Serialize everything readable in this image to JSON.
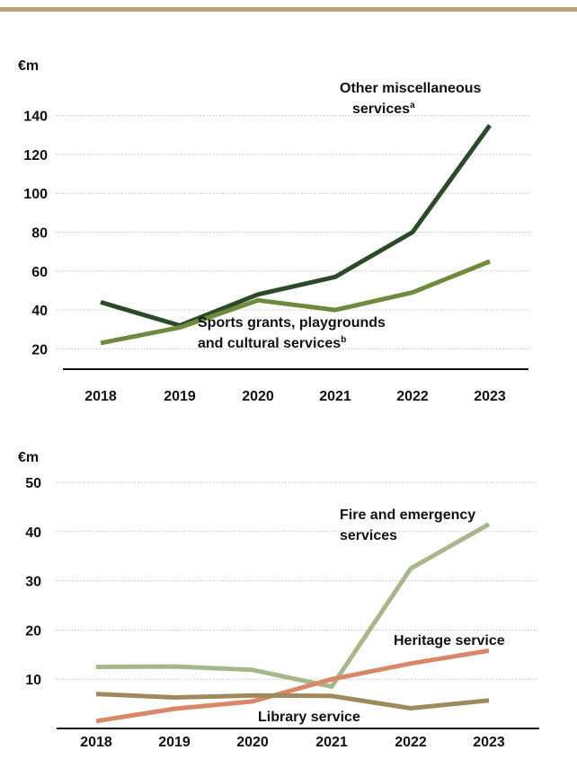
{
  "colors": {
    "rule": "#b9a27a",
    "grid": "#bdbdbd",
    "axis": "#111111"
  },
  "chart_data": [
    {
      "type": "line",
      "ylabel": "€m",
      "categories": [
        "2018",
        "2019",
        "2020",
        "2021",
        "2022",
        "2023"
      ],
      "ylim": [
        10,
        150
      ],
      "yticks": [
        20,
        40,
        60,
        80,
        100,
        120,
        140
      ],
      "grid": true,
      "series": [
        {
          "name": "Other miscellaneous services",
          "name_lines": [
            "Other miscellaneous",
            "services"
          ],
          "superscript": "a",
          "color": "#2c4a29",
          "values": [
            44,
            32,
            48,
            57,
            80,
            135
          ]
        },
        {
          "name": "Sports grants, playgrounds and cultural services",
          "name_lines": [
            "Sports grants, playgrounds",
            "and cultural services"
          ],
          "superscript": "b",
          "color": "#6e8b3d",
          "values": [
            23,
            31,
            45,
            40,
            49,
            65
          ]
        }
      ]
    },
    {
      "type": "line",
      "ylabel": "€m",
      "categories": [
        "2018",
        "2019",
        "2020",
        "2021",
        "2022",
        "2023"
      ],
      "ylim": [
        0,
        50
      ],
      "yticks": [
        10,
        20,
        30,
        40,
        50
      ],
      "grid": true,
      "series": [
        {
          "name": "Fire and emergency services",
          "name_lines": [
            "Fire and emergency",
            "services"
          ],
          "superscript": "",
          "color": "#a7b78a",
          "values": [
            12.5,
            12.6,
            11.9,
            8.5,
            32.5,
            41.5
          ]
        },
        {
          "name": "Heritage service",
          "name_lines": [
            "Heritage service"
          ],
          "superscript": "",
          "color": "#d98766",
          "values": [
            1.5,
            4.0,
            5.5,
            10.0,
            13.2,
            15.8
          ]
        },
        {
          "name": "Library service",
          "name_lines": [
            "Library service"
          ],
          "superscript": "",
          "color": "#a08a5c",
          "values": [
            7.0,
            6.3,
            6.7,
            6.6,
            4.1,
            5.7
          ]
        }
      ]
    }
  ]
}
